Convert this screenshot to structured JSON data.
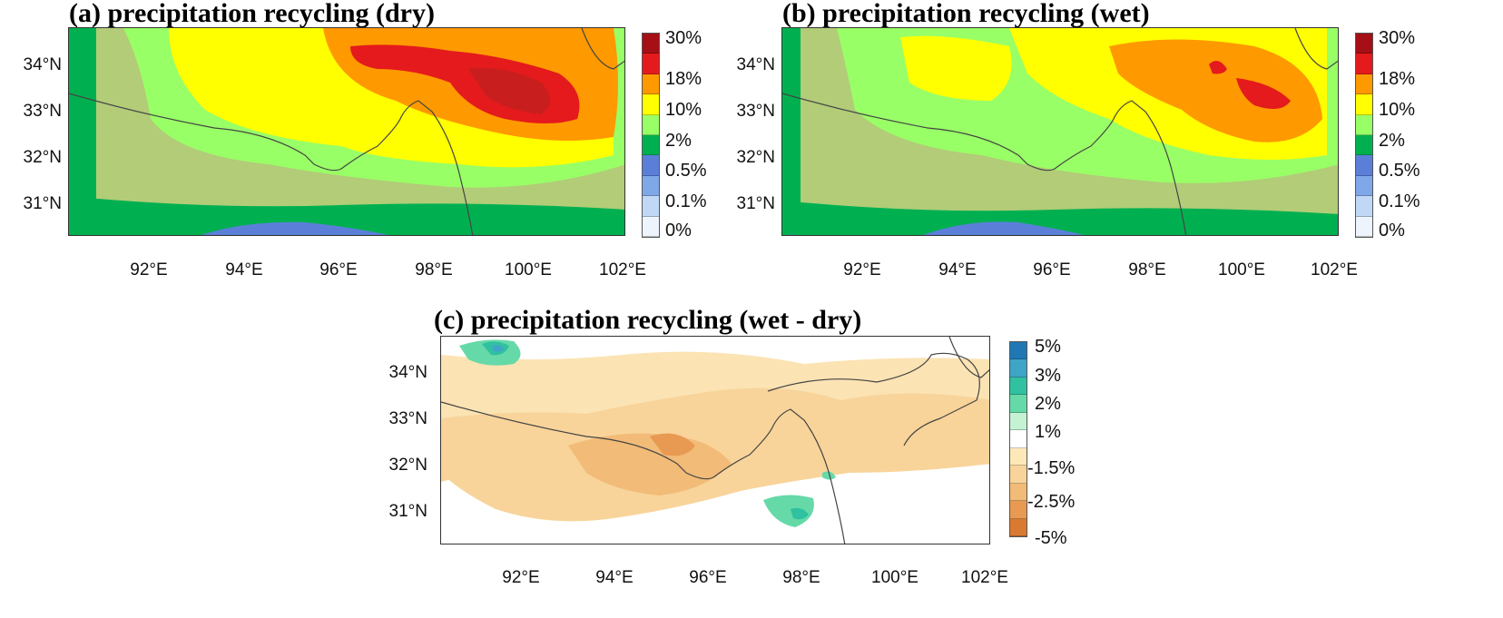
{
  "panels": [
    {
      "id": "a",
      "title": "(a) precipitation recycling (dry)",
      "lat_labels": [
        "34°N",
        "33°N",
        "32°N",
        "31°N"
      ],
      "lon_labels": [
        "92°E",
        "94°E",
        "96°E",
        "98°E",
        "100°E",
        "102°E"
      ],
      "colorbar": {
        "labels": [
          "30%",
          "18%",
          "10%",
          "2%",
          "0.5%",
          "0.1%",
          "0%"
        ],
        "colors": [
          "#a50f15",
          "#e41a1c",
          "#ff9900",
          "#ffff00",
          "#99ff66",
          "#00b050",
          "#5b7fd9",
          "#7fa8e8",
          "#c0d8f5",
          "#eef4fb"
        ]
      }
    },
    {
      "id": "b",
      "title": "(b) precipitation recycling (wet)",
      "lat_labels": [
        "34°N",
        "33°N",
        "32°N",
        "31°N"
      ],
      "lon_labels": [
        "92°E",
        "94°E",
        "96°E",
        "98°E",
        "100°E",
        "102°E"
      ],
      "colorbar": {
        "labels": [
          "30%",
          "18%",
          "10%",
          "2%",
          "0.5%",
          "0.1%",
          "0%"
        ],
        "colors": [
          "#a50f15",
          "#e41a1c",
          "#ff9900",
          "#ffff00",
          "#99ff66",
          "#00b050",
          "#5b7fd9",
          "#7fa8e8",
          "#c0d8f5",
          "#eef4fb"
        ]
      }
    },
    {
      "id": "c",
      "title": "(c) precipitation recycling (wet - dry)",
      "lat_labels": [
        "34°N",
        "33°N",
        "32°N",
        "31°N"
      ],
      "lon_labels": [
        "92°E",
        "94°E",
        "96°E",
        "98°E",
        "100°E",
        "102°E"
      ],
      "colorbar": {
        "labels": [
          "5%",
          "3%",
          "2%",
          "1%",
          "-1.5%",
          "-2.5%",
          "-5%"
        ],
        "colors": [
          "#1f78b4",
          "#3fa5c6",
          "#2fc1a0",
          "#66d9a8",
          "#c5f2d3",
          "#ffffff",
          "#fde9b8",
          "#f8d49a",
          "#f2bb78",
          "#e89a52",
          "#d97a32"
        ]
      }
    }
  ]
}
